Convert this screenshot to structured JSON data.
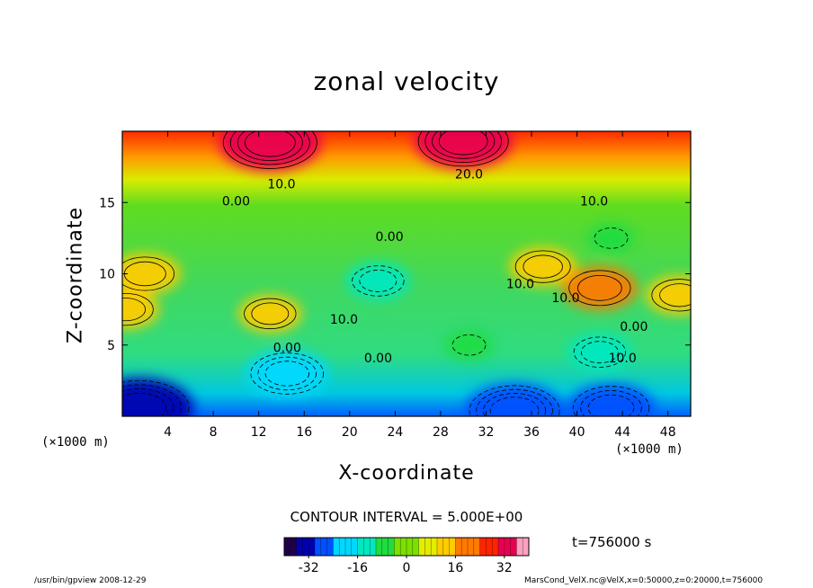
{
  "chart_data": {
    "type": "heatmap",
    "title": "zonal velocity",
    "xlabel": "X-coordinate",
    "ylabel": "Z-coordinate",
    "x_scale_note": "(×1000 m)",
    "y_scale_note": "(×1000 m)",
    "xlim": [
      0,
      50
    ],
    "ylim": [
      0,
      20
    ],
    "x_ticks": [
      4,
      8,
      12,
      16,
      20,
      24,
      28,
      32,
      36,
      40,
      44,
      48
    ],
    "y_ticks": [
      5,
      10,
      15
    ],
    "contour_interval_text": "CONTOUR INTERVAL = 5.000E+00",
    "contour_labels": [
      "20.0",
      "10.0",
      "10.0",
      "0.00",
      "0.00",
      "10.0",
      "10.0",
      "0.00",
      "0.00",
      "10.0",
      "0.00",
      "10.0"
    ],
    "colorbar": {
      "min": -40,
      "max": 40,
      "ticks": [
        -32,
        -16,
        0,
        16,
        32
      ],
      "tick_labels": [
        "-32",
        "-16",
        "0",
        "16",
        "32"
      ]
    },
    "features": [
      {
        "type": "max",
        "x": 13,
        "z": 19.2,
        "value": 32
      },
      {
        "type": "max",
        "x": 30,
        "z": 19.3,
        "value": 30
      },
      {
        "type": "max",
        "x": 2,
        "z": 10,
        "value": 16
      },
      {
        "type": "max",
        "x": 0.3,
        "z": 7.5,
        "value": 14
      },
      {
        "type": "max",
        "x": 13,
        "z": 7.2,
        "value": 12
      },
      {
        "type": "max",
        "x": 37,
        "z": 10.5,
        "value": 14
      },
      {
        "type": "max",
        "x": 49,
        "z": 8.5,
        "value": 14
      },
      {
        "type": "max",
        "x": 42,
        "z": 9,
        "value": 18
      },
      {
        "type": "min",
        "x": 22.5,
        "z": 9.5,
        "value": -12
      },
      {
        "type": "min",
        "x": 14.5,
        "z": 3,
        "value": -22
      },
      {
        "type": "min",
        "x": 1.5,
        "z": 0.6,
        "value": -35
      },
      {
        "type": "min",
        "x": 34.5,
        "z": 0.4,
        "value": -30
      },
      {
        "type": "min",
        "x": 43,
        "z": 0.6,
        "value": -24
      },
      {
        "type": "min",
        "x": 42,
        "z": 4.5,
        "value": -12
      },
      {
        "type": "min",
        "x": 43,
        "z": 12.5,
        "value": -4
      },
      {
        "type": "min",
        "x": 30.5,
        "z": 5,
        "value": -4
      }
    ],
    "time_text": "t=756000 s",
    "footer_left": "/usr/bin/gpview  2008-12-29",
    "footer_right": "MarsCond_VelX.nc@VelX,x=0:50000,z=0:20000,t=756000"
  },
  "colors": {
    "scale": [
      "#20004a",
      "#0000b0",
      "#0050ff",
      "#00d8ff",
      "#00e8c0",
      "#20dc40",
      "#7ce000",
      "#e4ec00",
      "#ffcc00",
      "#ff7a00",
      "#ff2400",
      "#e80050",
      "#ffa0c0"
    ]
  }
}
